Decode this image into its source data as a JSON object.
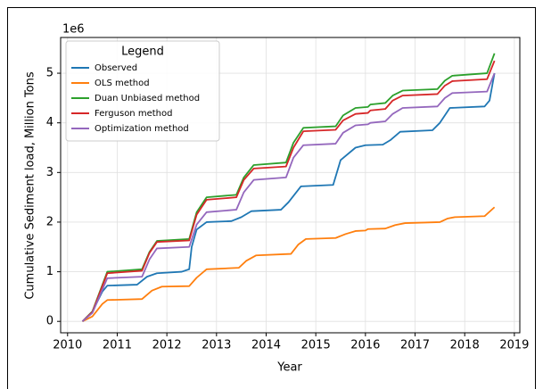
{
  "chart_data": {
    "type": "line",
    "x_label": "Year",
    "y_label": "Cumulative Sediment load, Million Tons",
    "y_offset_label": "1e6",
    "legend_title": "Legend",
    "legend_position": "upper left",
    "grid": true,
    "xlim": [
      2009.86,
      2019.11
    ],
    "ylim": [
      -0.23,
      5.72
    ],
    "xticks": [
      2010,
      2011,
      2012,
      2013,
      2014,
      2015,
      2016,
      2017,
      2018,
      2019
    ],
    "yticks": [
      0,
      1,
      2,
      3,
      4,
      5
    ],
    "series": [
      {
        "name": "Observed",
        "color": "#1f77b4",
        "x": [
          2010.3,
          2010.5,
          2010.7,
          2010.8,
          2011.4,
          2011.6,
          2011.8,
          2012.3,
          2012.45,
          2012.5,
          2012.6,
          2012.8,
          2013.3,
          2013.5,
          2013.7,
          2014.3,
          2014.45,
          2014.7,
          2015.35,
          2015.5,
          2015.8,
          2016.0,
          2016.35,
          2016.5,
          2016.7,
          2017.35,
          2017.5,
          2017.7,
          2018.4,
          2018.5,
          2018.6
        ],
        "values": [
          0,
          0.2,
          0.6,
          0.72,
          0.74,
          0.9,
          0.97,
          1.0,
          1.05,
          1.5,
          1.85,
          2.0,
          2.02,
          2.1,
          2.22,
          2.25,
          2.4,
          2.72,
          2.75,
          3.25,
          3.5,
          3.55,
          3.56,
          3.65,
          3.82,
          3.85,
          4.0,
          4.3,
          4.33,
          4.45,
          5.0
        ]
      },
      {
        "name": "OLS method",
        "color": "#ff7f0e",
        "x": [
          2010.3,
          2010.5,
          2010.7,
          2010.8,
          2011.5,
          2011.7,
          2011.9,
          2012.45,
          2012.6,
          2012.8,
          2013.45,
          2013.6,
          2013.8,
          2014.5,
          2014.65,
          2014.8,
          2015.4,
          2015.6,
          2015.8,
          2016.0,
          2016.05,
          2016.4,
          2016.6,
          2016.8,
          2017.5,
          2017.65,
          2017.8,
          2018.4,
          2018.6
        ],
        "values": [
          0,
          0.1,
          0.35,
          0.43,
          0.45,
          0.62,
          0.7,
          0.71,
          0.88,
          1.05,
          1.08,
          1.22,
          1.33,
          1.36,
          1.55,
          1.66,
          1.68,
          1.76,
          1.82,
          1.83,
          1.86,
          1.87,
          1.94,
          1.98,
          2.0,
          2.07,
          2.1,
          2.12,
          2.3
        ]
      },
      {
        "name": "Duan Unbiased method",
        "color": "#2ca02c",
        "x": [
          2010.3,
          2010.5,
          2010.65,
          2010.8,
          2011.5,
          2011.65,
          2011.8,
          2012.45,
          2012.6,
          2012.8,
          2013.4,
          2013.55,
          2013.75,
          2014.4,
          2014.55,
          2014.75,
          2015.4,
          2015.55,
          2015.8,
          2016.05,
          2016.1,
          2016.4,
          2016.55,
          2016.75,
          2017.45,
          2017.6,
          2017.75,
          2018.45,
          2018.6
        ],
        "values": [
          0,
          0.2,
          0.6,
          1.0,
          1.05,
          1.4,
          1.62,
          1.66,
          2.2,
          2.5,
          2.55,
          2.9,
          3.15,
          3.2,
          3.6,
          3.9,
          3.93,
          4.15,
          4.3,
          4.32,
          4.37,
          4.4,
          4.55,
          4.65,
          4.68,
          4.85,
          4.95,
          5.0,
          5.4
        ]
      },
      {
        "name": "Ferguson method",
        "color": "#d62728",
        "x": [
          2010.3,
          2010.5,
          2010.65,
          2010.8,
          2011.5,
          2011.65,
          2011.8,
          2012.45,
          2012.6,
          2012.8,
          2013.4,
          2013.55,
          2013.75,
          2014.4,
          2014.55,
          2014.75,
          2015.4,
          2015.55,
          2015.8,
          2016.05,
          2016.1,
          2016.4,
          2016.55,
          2016.75,
          2017.45,
          2017.6,
          2017.75,
          2018.45,
          2018.6
        ],
        "values": [
          0,
          0.19,
          0.58,
          0.97,
          1.02,
          1.38,
          1.6,
          1.63,
          2.15,
          2.45,
          2.5,
          2.85,
          3.08,
          3.12,
          3.5,
          3.83,
          3.86,
          4.05,
          4.18,
          4.2,
          4.25,
          4.28,
          4.45,
          4.55,
          4.58,
          4.75,
          4.84,
          4.88,
          5.25
        ]
      },
      {
        "name": "Optimization method",
        "color": "#9467bd",
        "x": [
          2010.3,
          2010.5,
          2010.65,
          2010.8,
          2011.5,
          2011.65,
          2011.8,
          2012.45,
          2012.6,
          2012.8,
          2013.4,
          2013.55,
          2013.75,
          2014.4,
          2014.55,
          2014.75,
          2015.4,
          2015.55,
          2015.8,
          2016.05,
          2016.1,
          2016.4,
          2016.55,
          2016.75,
          2017.45,
          2017.6,
          2017.75,
          2018.45,
          2018.6
        ],
        "values": [
          0,
          0.17,
          0.52,
          0.87,
          0.9,
          1.25,
          1.47,
          1.5,
          1.95,
          2.2,
          2.25,
          2.6,
          2.85,
          2.9,
          3.3,
          3.55,
          3.58,
          3.8,
          3.95,
          3.97,
          4.0,
          4.03,
          4.18,
          4.3,
          4.33,
          4.5,
          4.6,
          4.63,
          5.0
        ]
      }
    ]
  }
}
